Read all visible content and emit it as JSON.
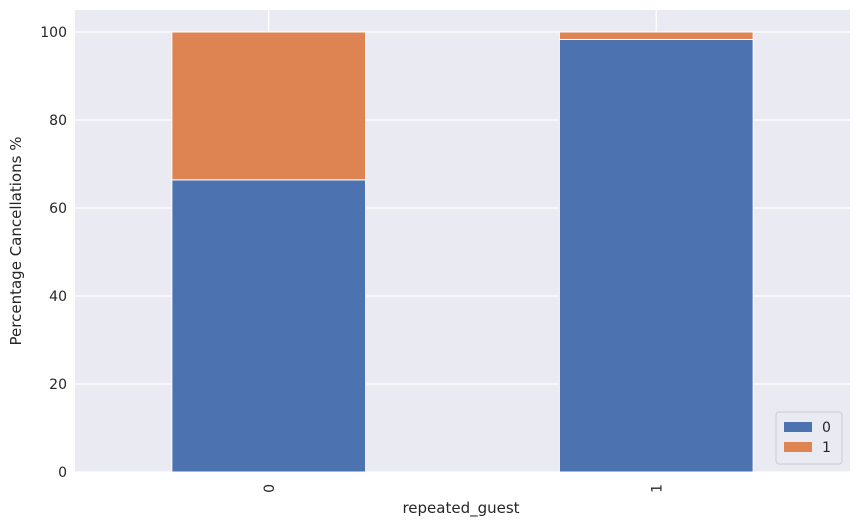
{
  "chart_data": {
    "type": "bar",
    "stacked": true,
    "categories": [
      "0",
      "1"
    ],
    "series": [
      {
        "name": "0",
        "values": [
          66.4,
          98.3
        ],
        "color": "#4c72b0"
      },
      {
        "name": "1",
        "values": [
          33.6,
          1.7
        ],
        "color": "#dd8452"
      }
    ],
    "xlabel": "repeated_guest",
    "ylabel": "Percentage Cancellations %",
    "ylim": [
      0,
      105
    ],
    "yticks": [
      0,
      20,
      40,
      60,
      80,
      100
    ],
    "grid": true,
    "legend": "lower right",
    "background": "#eaeaf2",
    "grid_color": "#ffffff"
  }
}
